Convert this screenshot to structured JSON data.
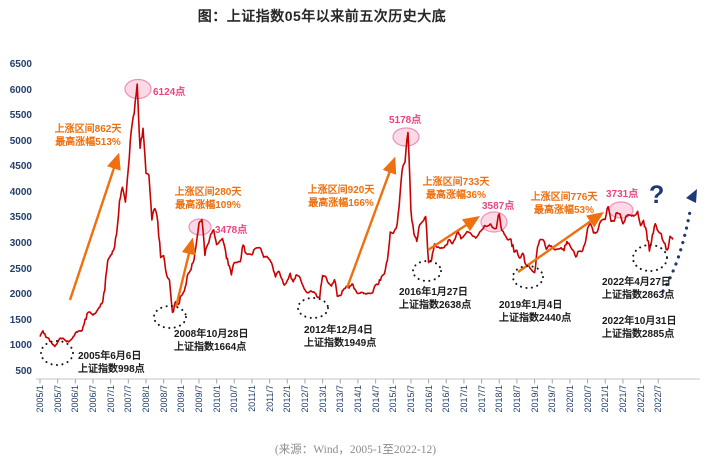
{
  "source": "(来源：Wind，2005-1至2022-12)",
  "colors": {
    "line": "#C80202",
    "rally_orange": "#EE7010",
    "peak_pink": "#E8457F",
    "peak_ellipse_fill": "#FBD9E6",
    "peak_ellipse_stroke": "#F090B8",
    "bottom_black": "#161616",
    "axis_navy": "#233F6B",
    "future_navy": "#1E3A74",
    "axis_line_gray": "#C6C6C6",
    "tick_gray": "#A6A6A6",
    "source_gray": "#8C8C8C"
  },
  "chart_data": {
    "type": "line",
    "title": "图：上证指数05年以来前五次历史大底",
    "xlabel": "",
    "ylabel": "",
    "ylim": [
      500,
      6500
    ],
    "y_ticks": [
      500,
      1000,
      1500,
      2000,
      2500,
      3000,
      3500,
      4000,
      4500,
      5000,
      5500,
      6000,
      6500
    ],
    "grid": false,
    "legend": "none",
    "x_tick_labels": [
      "2005/1",
      "2005/7",
      "2006/1",
      "2006/7",
      "2007/1",
      "2007/7",
      "2008/1",
      "2008/7",
      "2009/1",
      "2009/7",
      "2010/1",
      "2010/7",
      "2011/1",
      "2011/7",
      "2012/1",
      "2012/7",
      "2013/1",
      "2013/7",
      "2014/1",
      "2014/7",
      "2015/1",
      "2015/7",
      "2016/1",
      "2016/7",
      "2017/1",
      "2017/7",
      "2018/1",
      "2018/7",
      "2019/1",
      "2019/7",
      "2020/1",
      "2020/7",
      "2021/1",
      "2021/7",
      "2022/1",
      "2022/7"
    ],
    "series": [
      {
        "name": "上证指数",
        "x_start": "2005/1",
        "x_step_months": 1,
        "values": [
          1191,
          1306,
          1181,
          1159,
          1060,
          998,
          1083,
          1162,
          1155,
          1092,
          1099,
          1161,
          1258,
          1299,
          1298,
          1440,
          1641,
          1672,
          1612,
          1658,
          1752,
          1837,
          2099,
          2675,
          2786,
          2881,
          3183,
          3841,
          4109,
          3820,
          4471,
          5218,
          5552,
          6124,
          4871,
          5262,
          4383,
          4348,
          3472,
          3693,
          3433,
          2736,
          2775,
          2397,
          2294,
          1664,
          1871,
          1821,
          1991,
          2082,
          2373,
          2477,
          2633,
          2959,
          3412,
          3478,
          2779,
          2995,
          3195,
          3277,
          2989,
          3052,
          3109,
          2871,
          2592,
          2398,
          2638,
          2639,
          2656,
          2979,
          2820,
          2808,
          2790,
          2905,
          2928,
          2911,
          2743,
          2762,
          2701,
          2567,
          2359,
          2468,
          2333,
          2199,
          2293,
          2428,
          2263,
          2396,
          2372,
          2225,
          2104,
          2047,
          2086,
          2068,
          1980,
          1949,
          2385,
          2366,
          2237,
          2178,
          2301,
          1979,
          1994,
          2098,
          2175,
          2141,
          2221,
          2116,
          2033,
          2056,
          2033,
          2026,
          2039,
          2048,
          2201,
          2217,
          2364,
          2420,
          2683,
          3235,
          3210,
          3310,
          3748,
          4442,
          4612,
          5178,
          3664,
          3206,
          3053,
          3383,
          3445,
          3539,
          2638,
          2688,
          3004,
          2938,
          2917,
          2930,
          2979,
          3085,
          3005,
          3100,
          3250,
          3104,
          3159,
          3242,
          3223,
          3155,
          3117,
          3192,
          3273,
          3361,
          3349,
          3393,
          3317,
          3307,
          3587,
          3259,
          3169,
          3082,
          3095,
          2847,
          2876,
          2725,
          2821,
          2603,
          2588,
          2494,
          2440,
          2941,
          3091,
          3078,
          2898,
          2979,
          2933,
          2886,
          2905,
          2929,
          2872,
          3050,
          2977,
          2880,
          2750,
          2860,
          2852,
          2985,
          3310,
          3396,
          3218,
          3225,
          3392,
          3473,
          3483,
          3731,
          3442,
          3447,
          3615,
          3591,
          3397,
          3544,
          3568,
          3547,
          3564,
          3640,
          3361,
          3462,
          3252,
          2863,
          3186,
          3399,
          3253,
          3202,
          3024,
          2885,
          3151,
          3089
        ]
      }
    ],
    "annotated_peaks": [
      {
        "label": "6124点",
        "value": 6124
      },
      {
        "label": "3478点",
        "value": 3478
      },
      {
        "label": "5178点",
        "value": 5178
      },
      {
        "label": "3587点",
        "value": 3587
      },
      {
        "label": "3731点",
        "value": 3731
      }
    ],
    "annotated_bottoms": [
      {
        "date": "2005年6月6日",
        "value": 998
      },
      {
        "date": "2008年10月28日",
        "value": 1664
      },
      {
        "date": "2012年12月4日",
        "value": 1949
      },
      {
        "date": "2016年1月27日",
        "value": 2638
      },
      {
        "date": "2019年1月4日",
        "value": 2440
      },
      {
        "date": "2022年4月27日",
        "value": 2863
      },
      {
        "date": "2022年10月31日",
        "value": 2885
      }
    ]
  },
  "annotations": {
    "rallies": [
      {
        "line1": "上涨区间862天",
        "line2": "最高涨幅513%"
      },
      {
        "line1": "上涨区间280天",
        "line2": "最高涨幅109%"
      },
      {
        "line1": "上涨区间920天",
        "line2": "最高涨幅166%"
      },
      {
        "line1": "上涨区间733天",
        "line2": "最高涨幅36%"
      },
      {
        "line1": "上涨区间776天",
        "line2": "最高涨幅53%"
      }
    ],
    "peaks": [
      "6124点",
      "3478点",
      "5178点",
      "3587点",
      "3731点"
    ],
    "bottoms": [
      {
        "line1": "2005年6月6日",
        "line2": "上证指数998点"
      },
      {
        "line1": "2008年10月28日",
        "line2": "上证指数1664点"
      },
      {
        "line1": "2012年12月4日",
        "line2": "上证指数1949点"
      },
      {
        "line1": "2016年1月27日",
        "line2": "上证指数2638点"
      },
      {
        "line1": "2019年1月4日",
        "line2": "上证指数2440点"
      },
      {
        "line1": "2022年4月27日",
        "line2": "上证指数2863点"
      },
      {
        "line1": "2022年10月31日",
        "line2": "上证指数2885点"
      }
    ],
    "future_symbol": "?"
  }
}
